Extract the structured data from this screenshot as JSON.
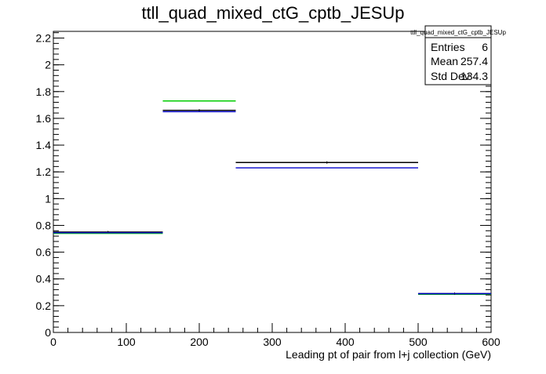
{
  "chart_data": {
    "type": "histogram",
    "title": "ttll_quad_mixed_ctG_cptb_JESUp",
    "xlabel": "Leading pt of pair from l+j collection (GeV)",
    "ylabel": "",
    "xlim": [
      0,
      600
    ],
    "ylim": [
      0,
      2.25
    ],
    "x_ticks": [
      0,
      100,
      200,
      300,
      400,
      500,
      600
    ],
    "x_tick_labels": [
      "0",
      "100",
      "200",
      "300",
      "400",
      "500",
      "600"
    ],
    "y_ticks": [
      0,
      0.2,
      0.4,
      0.6,
      0.8,
      1,
      1.2,
      1.4,
      1.6,
      1.8,
      2,
      2.2
    ],
    "y_tick_labels": [
      "0",
      "0.2",
      "0.4",
      "0.6",
      "0.8",
      "1",
      "1.2",
      "1.4",
      "1.6",
      "1.8",
      "2",
      "2.2"
    ],
    "bin_edges": [
      0,
      150,
      250,
      500,
      600
    ],
    "grid": false,
    "series": [
      {
        "color": "#00cc00",
        "values": [
          0.74,
          1.73,
          1.27,
          0.285
        ]
      },
      {
        "color": "#000000",
        "values": [
          0.75,
          1.66,
          1.27,
          0.29
        ]
      },
      {
        "color": "#0000cc",
        "values": [
          0.745,
          1.65,
          1.23,
          0.29
        ]
      }
    ],
    "stats_box": {
      "title": "ttll_quad_mixed_ctG_cptb_JESUp",
      "rows": [
        {
          "label": "Entries",
          "value": "6"
        },
        {
          "label": "Mean",
          "value": "257.4"
        },
        {
          "label": "Std Dev",
          "value": "134.3"
        }
      ]
    }
  }
}
